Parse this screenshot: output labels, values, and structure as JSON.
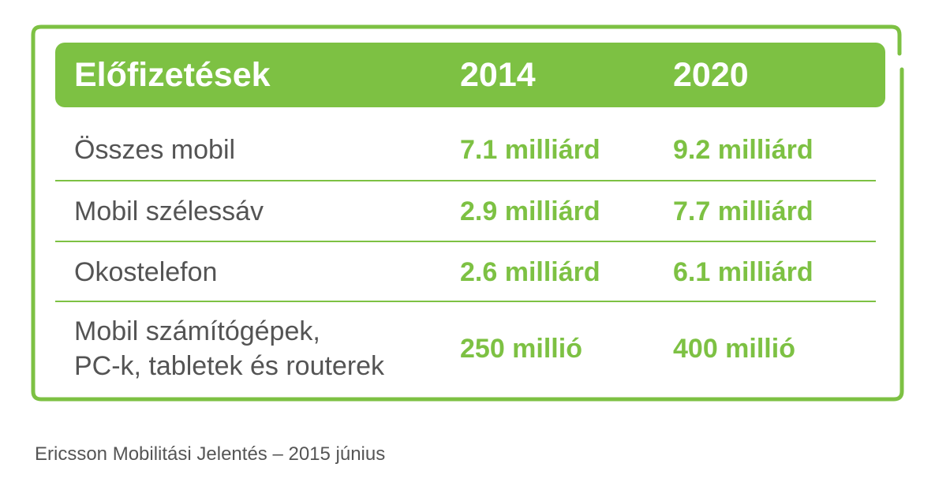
{
  "chart_data": {
    "type": "table",
    "title": "",
    "columns": [
      "Előfizetések",
      "2014",
      "2020"
    ],
    "rows": [
      {
        "label": "Összes mobil",
        "v2014": "7.1 milliárd",
        "v2020": "9.2 milliárd"
      },
      {
        "label": "Mobil szélessáv",
        "v2014": "2.9 milliárd",
        "v2020": "7.7 milliárd"
      },
      {
        "label": "Okostelefon",
        "v2014": "2.6 milliárd",
        "v2020": "6.1 milliárd"
      },
      {
        "label_lines": [
          "Mobil számítógépek,",
          "PC-k, tabletek és routerek"
        ],
        "v2014": "250 millió",
        "v2020": "400 millió"
      }
    ],
    "source": "Ericsson Mobilitási Jelentés – 2015 június"
  },
  "colors": {
    "accent": "#7dc143",
    "text": "#545454",
    "header_text": "#ffffff"
  }
}
